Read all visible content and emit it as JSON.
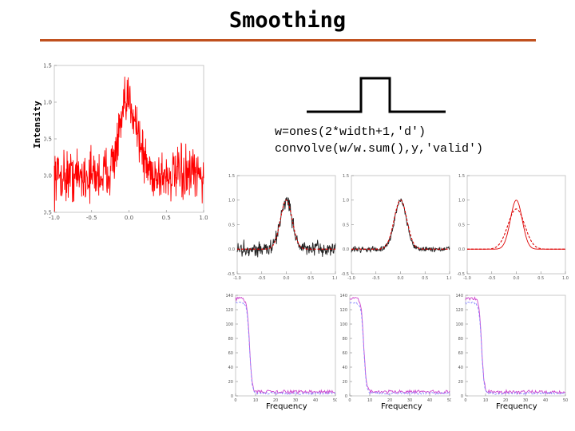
{
  "slide": {
    "title": "Smoothing",
    "ylabel": "Intensity",
    "code_line1": "w=ones(2*width+1,'d')",
    "code_line2": "convolve(w/w.sum(),y,'valid')",
    "xlabel_freq": "Frequency",
    "accent_color": "#c0501e"
  },
  "chart_data": [
    {
      "type": "line",
      "panel": "raw-signal",
      "ylabel": "Intensity",
      "xlim": [
        -1.0,
        1.0
      ],
      "ylim": [
        -0.5,
        1.5
      ],
      "xticks": [
        "-1.0",
        "-0.5",
        "0.0",
        "0.5",
        "1.0"
      ],
      "yticks": [
        "-0.5",
        "0.0",
        "0.5",
        "1.0",
        "1.5"
      ],
      "series": [
        {
          "color": "#ff0000",
          "peak": 1.0,
          "sigma": 0.12,
          "noise": 0.25,
          "values": []
        }
      ]
    },
    {
      "type": "line",
      "panel": "smoothed-1",
      "xlim": [
        -1.0,
        1.0
      ],
      "ylim": [
        -0.5,
        1.5
      ],
      "yticks": [
        "-0.5",
        "0.0",
        "0.5",
        "1.0",
        "1.5"
      ],
      "xticks": [
        "-1.0",
        "-0.5",
        "0.0",
        "0.5",
        "1.0"
      ],
      "series": [
        {
          "color": "#222222",
          "style": "noisy"
        },
        {
          "color": "#dd0000",
          "style": "dashed"
        }
      ]
    },
    {
      "type": "line",
      "panel": "smoothed-2",
      "xlim": [
        -1.0,
        1.0
      ],
      "ylim": [
        -0.5,
        1.5
      ],
      "yticks": [
        "-0.5",
        "0.0",
        "0.5",
        "1.0",
        "1.5"
      ],
      "xticks": [
        "-1.0",
        "-0.5",
        "0.0",
        "0.5",
        "1.0"
      ],
      "series": [
        {
          "color": "#222222",
          "style": "noisy"
        },
        {
          "color": "#dd0000",
          "style": "dashed"
        }
      ]
    },
    {
      "type": "line",
      "panel": "smoothed-3",
      "xlim": [
        -1.0,
        1.0
      ],
      "ylim": [
        -0.5,
        1.5
      ],
      "yticks": [
        "-0.5",
        "0.0",
        "0.5",
        "1.0",
        "1.5"
      ],
      "xticks": [
        "-1.0",
        "-0.5",
        "0.0",
        "0.5",
        "1.0"
      ],
      "series": [
        {
          "color": "#dd0000",
          "style": "solid"
        },
        {
          "color": "#dd0000",
          "style": "dashed-wide"
        }
      ]
    },
    {
      "type": "line",
      "panel": "spectrum-1",
      "xlabel": "Frequency",
      "xlim": [
        0,
        50
      ],
      "ylim": [
        0,
        140
      ],
      "xticks": [
        "0",
        "10",
        "20",
        "30",
        "40",
        "50"
      ],
      "yticks": [
        "0",
        "20",
        "40",
        "60",
        "80",
        "100",
        "120",
        "140"
      ],
      "series": [
        {
          "color": "#cc44cc"
        },
        {
          "color": "#8888ff",
          "style": "dashed"
        }
      ]
    },
    {
      "type": "line",
      "panel": "spectrum-2",
      "xlabel": "Frequency",
      "xlim": [
        0,
        50
      ],
      "ylim": [
        0,
        140
      ],
      "xticks": [
        "0",
        "10",
        "20",
        "30",
        "40",
        "50"
      ],
      "yticks": [
        "0",
        "20",
        "40",
        "60",
        "80",
        "100",
        "120",
        "140"
      ],
      "series": [
        {
          "color": "#cc44cc"
        },
        {
          "color": "#8888ff",
          "style": "dashed"
        }
      ]
    },
    {
      "type": "line",
      "panel": "spectrum-3",
      "xlabel": "Frequency",
      "xlim": [
        0,
        50
      ],
      "ylim": [
        0,
        140
      ],
      "xticks": [
        "0",
        "10",
        "20",
        "30",
        "40",
        "50"
      ],
      "yticks": [
        "0",
        "20",
        "40",
        "60",
        "80",
        "100",
        "120",
        "140"
      ],
      "series": [
        {
          "color": "#cc44cc"
        },
        {
          "color": "#8888ff",
          "style": "dashed"
        }
      ]
    }
  ]
}
